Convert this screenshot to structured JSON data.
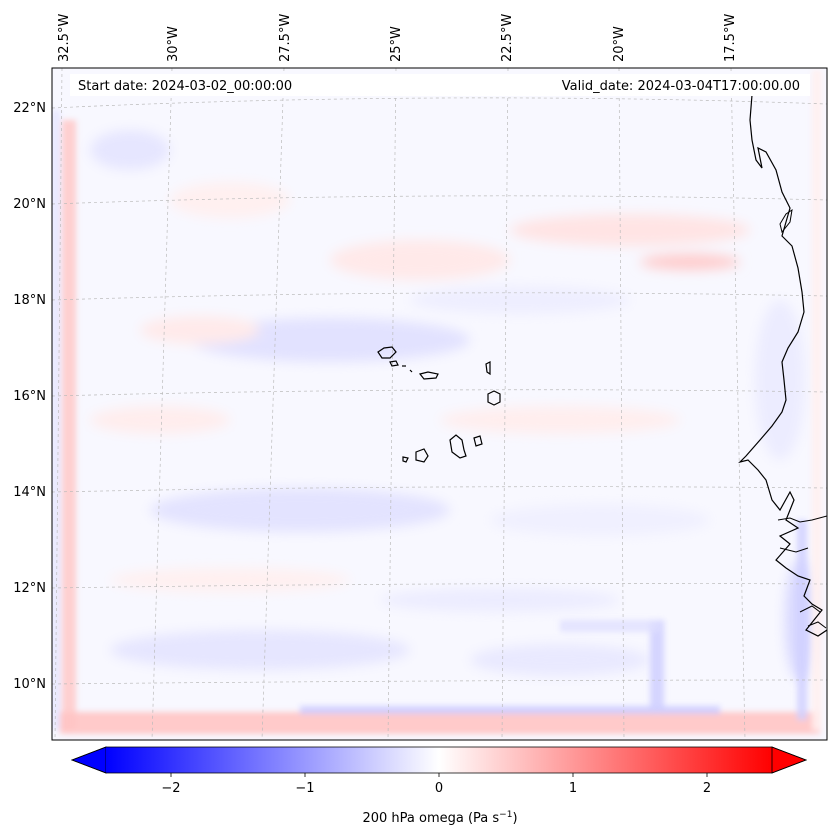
{
  "header": {
    "start_date": "Start date: 2024-03-02_00:00:00",
    "valid_date": "Valid_date: 2024-03-04T17:00:00.00"
  },
  "map": {
    "lon_labels": [
      "32.5°W",
      "30°W",
      "27.5°W",
      "25°W",
      "22.5°W",
      "20°W",
      "17.5°W"
    ],
    "lat_labels": [
      "22°N",
      "20°N",
      "18°N",
      "16°N",
      "14°N",
      "12°N",
      "10°N"
    ],
    "gridlines": true,
    "coastline_color": "#000000"
  },
  "colorbar": {
    "ticks": [
      "−2",
      "−1",
      "0",
      "1",
      "2"
    ],
    "label": "200 hPa omega (Pa s",
    "label_sup": "−1",
    "label_end": ")",
    "min_color": "#0000ff",
    "mid_color": "#ffffff",
    "max_color": "#ff0000",
    "extend": "both"
  }
}
